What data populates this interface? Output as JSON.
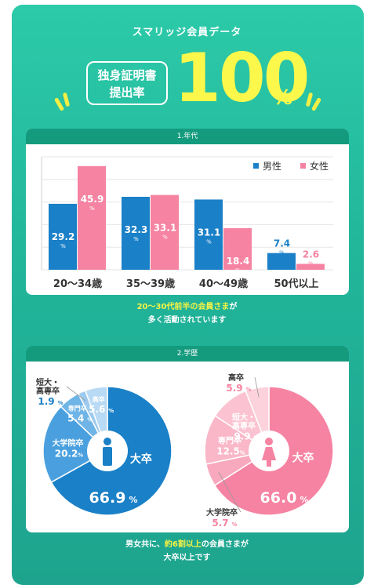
{
  "header": {
    "title": "スマリッジ会員データ",
    "badge_line1": "独身証明書",
    "badge_line2": "提出率",
    "rate_value": "100",
    "rate_unit": "%"
  },
  "colors": {
    "male": "#1a80c7",
    "female": "#f583a1",
    "panel": "#22b79c",
    "card_header": "#149b7e",
    "highlight": "#f6f346"
  },
  "section_age": {
    "header": "1.年代",
    "caption_highlight": "20～30代前半の会員さま",
    "caption_rest1": "が",
    "caption_line2": "多く活動されています"
  },
  "section_edu": {
    "header": "2.学歴",
    "caption_prefix": "男女共に、",
    "caption_highlight": "約6割以上",
    "caption_rest1": "の会員さまが",
    "caption_line2": "大卒以上です"
  },
  "chart_data": [
    {
      "type": "bar",
      "categories": [
        "20～34歳",
        "35～39歳",
        "40～49歳",
        "50代以上"
      ],
      "series": [
        {
          "name": "男性",
          "values": [
            29.2,
            32.3,
            31.1,
            7.4
          ],
          "color": "#1a80c7"
        },
        {
          "name": "女性",
          "values": [
            45.9,
            33.1,
            18.4,
            2.6
          ],
          "color": "#f583a1"
        }
      ],
      "unit": "%",
      "legend": "top-right",
      "ylim": [
        0,
        50
      ],
      "grid": true
    },
    {
      "type": "pie",
      "labels": [
        "大卒",
        "大学院卒",
        "専門卒",
        "短大・高専卒",
        "高卒"
      ],
      "values": [
        66.9,
        20.2,
        5.4,
        1.9,
        5.6
      ],
      "label_lines": [
        [
          "大卒"
        ],
        [
          "大学院卒"
        ],
        [
          "専門卒"
        ],
        [
          "短大・",
          "高専卒"
        ],
        [
          "高卒"
        ]
      ],
      "value_labels": [
        "66.9",
        "20.2",
        "5.4",
        "1.9",
        "5.6"
      ],
      "unit": "%",
      "colors": [
        "#1a80c7",
        "#4aa0df",
        "#6fb4e6",
        "#9dcaee",
        "#b9daf4"
      ]
    },
    {
      "type": "pie",
      "labels": [
        "大卒",
        "大学院卒",
        "専門卒",
        "短大・高専卒",
        "高卒"
      ],
      "values": [
        66.0,
        5.7,
        12.5,
        9.9,
        5.9
      ],
      "label_lines": [
        [
          "大卒"
        ],
        [
          "大学院卒"
        ],
        [
          "専門卒"
        ],
        [
          "短大・",
          "高専卒"
        ],
        [
          "高卒"
        ]
      ],
      "value_labels": [
        "66.0",
        "5.7",
        "12.5",
        "9.9",
        "5.9"
      ],
      "unit": "%",
      "colors": [
        "#f583a1",
        "#f9a9be",
        "#fab7c8",
        "#fbc3d2",
        "#fcd2dd"
      ]
    }
  ]
}
